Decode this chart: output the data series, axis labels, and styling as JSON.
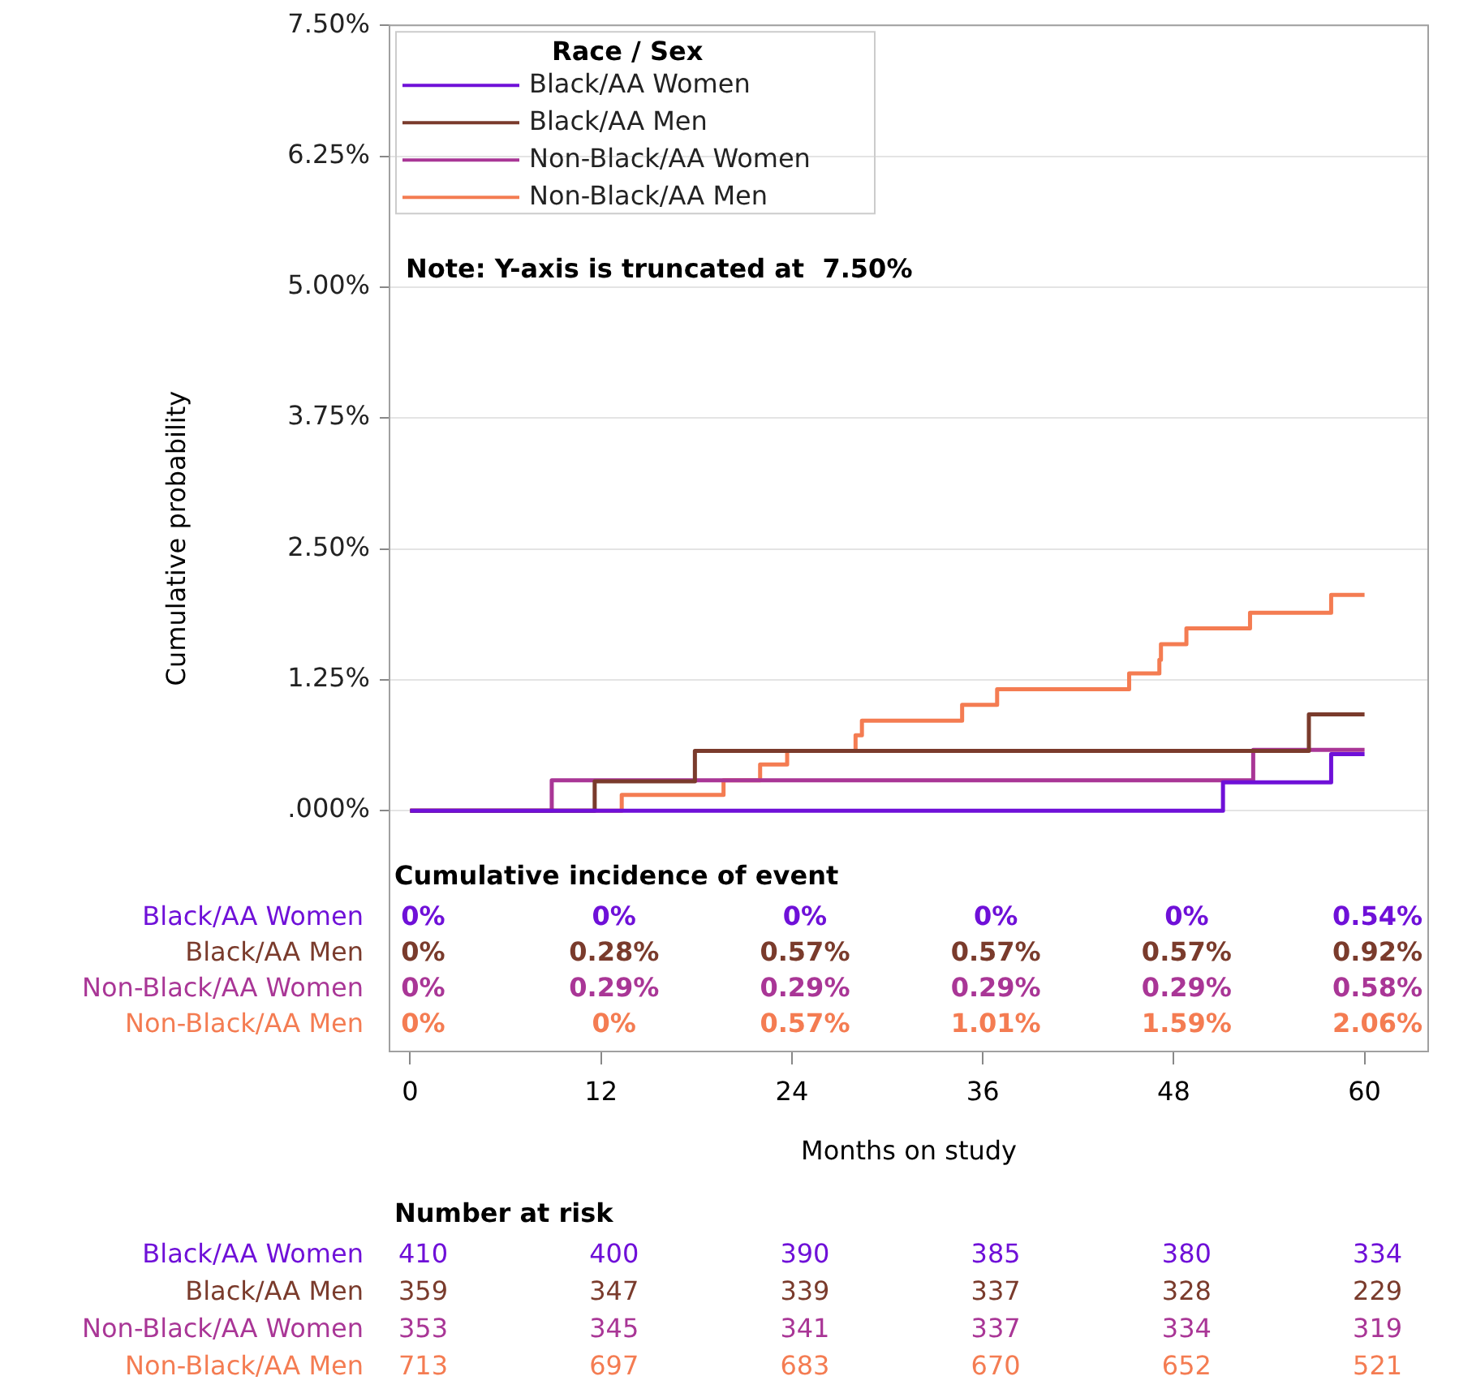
{
  "chart_data": {
    "type": "step",
    "xlabel": "Months on study",
    "ylabel": "Cumulative probability",
    "legend_title": "Race / Sex",
    "legend": "top left",
    "grid": "y",
    "xlim": [
      -1.3,
      64
    ],
    "xticks": [
      0,
      12,
      24,
      36,
      48,
      60
    ],
    "ylim": [
      -2.3,
      7.5
    ],
    "yticks": [
      {
        "value": 0,
        "label": ".000%"
      },
      {
        "value": 1.25,
        "label": "1.25%"
      },
      {
        "value": 2.5,
        "label": "2.50%"
      },
      {
        "value": 3.75,
        "label": "3.75%"
      },
      {
        "value": 5,
        "label": "5.00%"
      },
      {
        "value": 6.25,
        "label": "6.25%"
      },
      {
        "value": 7.5,
        "label": "7.50%"
      }
    ],
    "series": [
      {
        "name": "Black/AA Women",
        "color": "#6f10d8",
        "x": [
          0,
          51.1,
          57.9,
          60
        ],
        "values": [
          0,
          0.27,
          0.54,
          0.54
        ]
      },
      {
        "name": "Black/AA Men",
        "color": "#7a3b2c",
        "x": [
          0,
          11.6,
          17.9,
          56.5,
          60
        ],
        "values": [
          0,
          0.28,
          0.57,
          0.92,
          0.92
        ]
      },
      {
        "name": "Non-Black/AA Women",
        "color": "#a93696",
        "x": [
          0,
          8.9,
          53.0,
          60
        ],
        "values": [
          0,
          0.29,
          0.58,
          0.58
        ]
      },
      {
        "name": "Non-Black/AA Men",
        "color": "#f47c52",
        "x": [
          0,
          13.3,
          19.7,
          22.0,
          23.7,
          28.0,
          28.4,
          34.7,
          36.9,
          45.2,
          47.1,
          47.2,
          48.8,
          52.8,
          57.9,
          60
        ],
        "values": [
          0,
          0.15,
          0.29,
          0.44,
          0.57,
          0.72,
          0.86,
          1.01,
          1.16,
          1.31,
          1.44,
          1.59,
          1.74,
          1.89,
          2.06,
          2.06
        ]
      }
    ],
    "annotations": [
      "Note: Y-axis is truncated at  7.50%",
      "Cumulative incidence of event",
      "0%",
      "0%",
      "0%",
      "0%",
      "0%",
      "0.54%",
      "0%",
      "0.28%",
      "0.57%",
      "0.57%",
      "0.57%",
      "0.92%",
      "0%",
      "0.29%",
      "0.29%",
      "0.29%",
      "0.29%",
      "0.58%",
      "0%",
      "0%",
      "0.57%",
      "1.01%",
      "1.59%",
      "2.06%",
      "Number at risk",
      "410",
      "400",
      "390",
      "385",
      "380",
      "334",
      "359",
      "347",
      "339",
      "337",
      "328",
      "229",
      "353",
      "345",
      "341",
      "337",
      "334",
      "319",
      "713",
      "697",
      "683",
      "670",
      "652",
      "521"
    ]
  }
}
